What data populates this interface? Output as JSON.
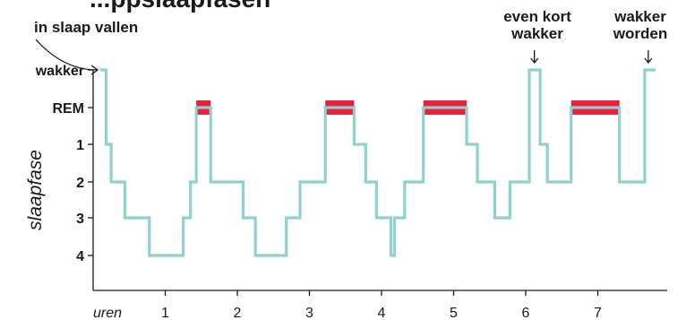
{
  "chart_data": {
    "type": "line",
    "title": "...ppslaapfasen",
    "xlabel": "uren",
    "ylabel": "slaapfase",
    "x_ticks": [
      1,
      2,
      3,
      4,
      5,
      6,
      7
    ],
    "x_tick_labels": [
      "1",
      "2",
      "3",
      "4",
      "5",
      "6",
      "7"
    ],
    "xlim": [
      0,
      8
    ],
    "y_levels": [
      "wakker",
      "REM",
      "1",
      "2",
      "3",
      "4"
    ],
    "grid": false,
    "colors": {
      "line": "#8ed2ce",
      "rem": "#e8203c",
      "axis": "#1a1a1a"
    },
    "series": [
      {
        "x": [
          0.1,
          0.18,
          0.18,
          0.25,
          0.25,
          0.44,
          0.44,
          0.78,
          0.78,
          1.25,
          1.25,
          1.35,
          1.35,
          1.43,
          1.43,
          1.63,
          1.63,
          2.08,
          2.08,
          2.25,
          2.25,
          2.68,
          2.68,
          2.87,
          2.87,
          3.22,
          3.22,
          3.62,
          3.62,
          3.78,
          3.78,
          3.93,
          3.93,
          4.13,
          4.13,
          4.18,
          4.18,
          4.32,
          4.32,
          4.58,
          4.58,
          5.18,
          5.18,
          5.33,
          5.33,
          5.57,
          5.57,
          5.78,
          5.78,
          6.05,
          6.05,
          6.2,
          6.2,
          6.3,
          6.3,
          6.63,
          6.63,
          7.3,
          7.3,
          7.65,
          7.65,
          7.8
        ],
        "y_stage": [
          "wakker",
          "wakker",
          "1",
          "1",
          "2",
          "2",
          "3",
          "3",
          "4",
          "4",
          "3",
          "3",
          "2",
          "2",
          "REM",
          "REM",
          "2",
          "2",
          "3",
          "3",
          "4",
          "4",
          "3",
          "3",
          "2",
          "2",
          "REM",
          "REM",
          "1",
          "1",
          "2",
          "2",
          "3",
          "3",
          "4",
          "4",
          "3",
          "3",
          "2",
          "2",
          "REM",
          "REM",
          "1",
          "1",
          "2",
          "2",
          "3",
          "3",
          "2",
          "2",
          "wakker",
          "wakker",
          "1",
          "1",
          "2",
          "2",
          "REM",
          "REM",
          "2",
          "2",
          "wakker",
          "wakker"
        ]
      }
    ],
    "rem_periods": [
      [
        1.43,
        1.63
      ],
      [
        3.22,
        3.62
      ],
      [
        4.58,
        5.18
      ],
      [
        6.63,
        7.3
      ]
    ],
    "annotations": [
      {
        "lines": [
          "in slaap vallen"
        ],
        "at_x": 0.1
      },
      {
        "lines": [
          "even kort",
          "wakker"
        ],
        "at_x": 6.12
      },
      {
        "lines": [
          "wakker",
          "worden"
        ],
        "at_x": 7.7
      }
    ]
  }
}
